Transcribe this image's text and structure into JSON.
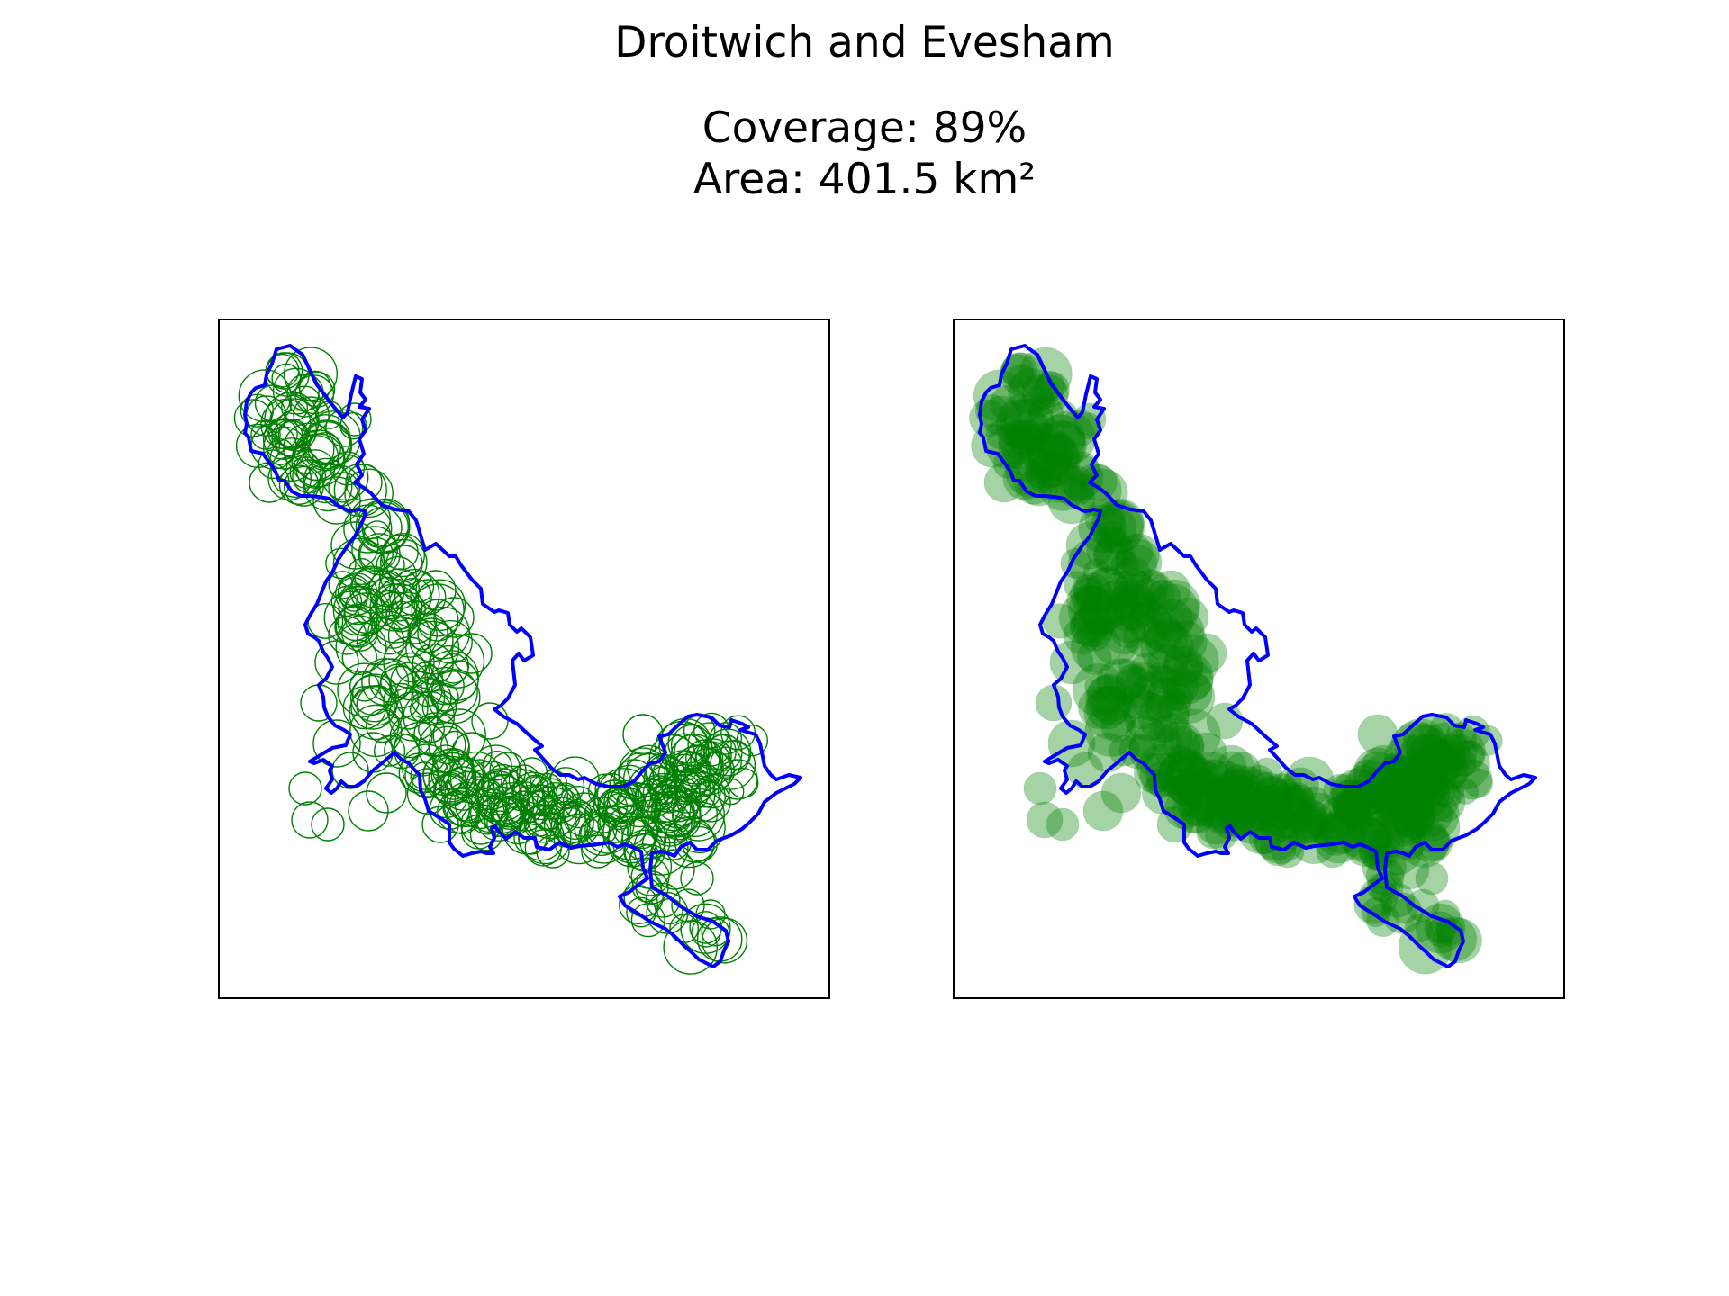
{
  "header": {
    "title": "Droitwich and Evesham",
    "coverage_label": "Coverage: 89%",
    "area_label": "Area: 401.5 km²"
  },
  "map": {
    "coverage_percent": 89,
    "area_km2": 401.5,
    "colors": {
      "boundary": "#0000ff",
      "circle_stroke": "#008000",
      "circle_fill": "#008000"
    },
    "panels": [
      {
        "name": "circle-outlines",
        "style": "outline"
      },
      {
        "name": "circle-fill",
        "style": "filled"
      }
    ]
  }
}
